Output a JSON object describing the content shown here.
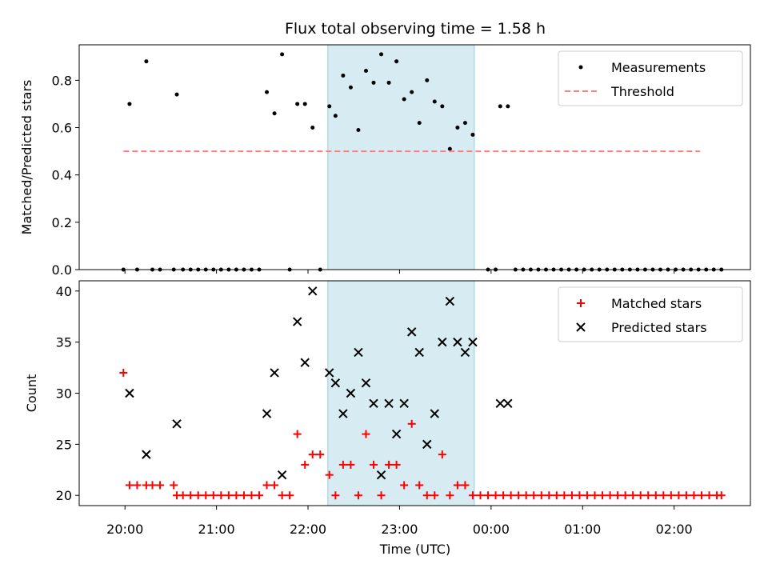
{
  "chart_data": {
    "title": "Flux total observing time = 1.58 h",
    "xlabel": "Time (UTC)",
    "x_ticks": [
      "20:00",
      "21:00",
      "22:00",
      "23:00",
      "00:00",
      "01:00",
      "02:00"
    ],
    "shaded_interval_minutes": [
      1333,
      1429
    ],
    "panels": [
      {
        "type": "scatter",
        "ylabel": "Matched/Predicted stars",
        "ylim": [
          0,
          0.95
        ],
        "y_ticks": [
          "0.0",
          "0.2",
          "0.4",
          "0.6",
          "0.8"
        ],
        "legend_position": "top-right",
        "legend": [
          "Measurements",
          "Threshold"
        ],
        "series": [
          {
            "name": "Measurements",
            "marker": "dot",
            "color": "#000000",
            "points": [
              [
                1199,
                0.0
              ],
              [
                1203,
                0.7
              ],
              [
                1208,
                0.0
              ],
              [
                1214,
                0.88
              ],
              [
                1218,
                0.0
              ],
              [
                1223,
                0.0
              ],
              [
                1232,
                0.0
              ],
              [
                1234,
                0.74
              ],
              [
                1238,
                0.0
              ],
              [
                1243,
                0.0
              ],
              [
                1248,
                0.0
              ],
              [
                1253,
                0.0
              ],
              [
                1258,
                0.0
              ],
              [
                1263,
                0.0
              ],
              [
                1268,
                0.0
              ],
              [
                1273,
                0.0
              ],
              [
                1278,
                0.0
              ],
              [
                1283,
                0.0
              ],
              [
                1288,
                0.0
              ],
              [
                1293,
                0.75
              ],
              [
                1298,
                0.66
              ],
              [
                1303,
                0.91
              ],
              [
                1308,
                0.0
              ],
              [
                1313,
                0.7
              ],
              [
                1318,
                0.7
              ],
              [
                1323,
                0.6
              ],
              [
                1328,
                0.0
              ],
              [
                1334,
                0.69
              ],
              [
                1338,
                0.65
              ],
              [
                1343,
                0.82
              ],
              [
                1348,
                0.77
              ],
              [
                1353,
                0.59
              ],
              [
                1358,
                0.84
              ],
              [
                1363,
                0.79
              ],
              [
                1368,
                0.91
              ],
              [
                1373,
                0.79
              ],
              [
                1378,
                0.88
              ],
              [
                1383,
                0.72
              ],
              [
                1388,
                0.75
              ],
              [
                1393,
                0.62
              ],
              [
                1398,
                0.8
              ],
              [
                1403,
                0.71
              ],
              [
                1408,
                0.69
              ],
              [
                1413,
                0.51
              ],
              [
                1418,
                0.6
              ],
              [
                1423,
                0.62
              ],
              [
                1428,
                0.57
              ],
              [
                1438,
                0.0
              ],
              [
                1443,
                0.0
              ],
              [
                1446,
                0.69
              ],
              [
                1451,
                0.69
              ],
              [
                1456,
                0.0
              ],
              [
                1461,
                0.0
              ],
              [
                1466,
                0.0
              ],
              [
                1471,
                0.0
              ],
              [
                1476,
                0.0
              ],
              [
                1481,
                0.0
              ],
              [
                1486,
                0.0
              ],
              [
                1491,
                0.0
              ],
              [
                1496,
                0.0
              ],
              [
                1501,
                0.0
              ],
              [
                1506,
                0.0
              ],
              [
                1511,
                0.0
              ],
              [
                1516,
                0.0
              ],
              [
                1521,
                0.0
              ],
              [
                1526,
                0.0
              ],
              [
                1531,
                0.0
              ],
              [
                1536,
                0.0
              ],
              [
                1541,
                0.0
              ],
              [
                1546,
                0.0
              ],
              [
                1551,
                0.0
              ],
              [
                1556,
                0.0
              ],
              [
                1561,
                0.0
              ],
              [
                1566,
                0.0
              ],
              [
                1571,
                0.0
              ],
              [
                1576,
                0.0
              ],
              [
                1581,
                0.0
              ],
              [
                1586,
                0.0
              ],
              [
                1591,
                0.0
              ]
            ]
          },
          {
            "name": "Threshold",
            "marker": "dashed-line",
            "color": "#ff7f7f",
            "points": [
              [
                1199,
                0.5
              ],
              [
                1577,
                0.5
              ]
            ]
          }
        ]
      },
      {
        "type": "scatter",
        "ylabel": "Count",
        "ylim": [
          19,
          41
        ],
        "y_ticks": [
          "20",
          "25",
          "30",
          "35",
          "40"
        ],
        "legend_position": "top-right",
        "legend": [
          "Matched stars",
          "Predicted stars"
        ],
        "series": [
          {
            "name": "Matched stars",
            "marker": "plus",
            "color": "#ff0000",
            "points": [
              [
                1199,
                32
              ],
              [
                1203,
                21
              ],
              [
                1208,
                21
              ],
              [
                1214,
                21
              ],
              [
                1218,
                21
              ],
              [
                1223,
                21
              ],
              [
                1232,
                21
              ],
              [
                1234,
                20
              ],
              [
                1238,
                20
              ],
              [
                1243,
                20
              ],
              [
                1248,
                20
              ],
              [
                1253,
                20
              ],
              [
                1258,
                20
              ],
              [
                1263,
                20
              ],
              [
                1268,
                20
              ],
              [
                1273,
                20
              ],
              [
                1278,
                20
              ],
              [
                1283,
                20
              ],
              [
                1288,
                20
              ],
              [
                1293,
                21
              ],
              [
                1298,
                21
              ],
              [
                1303,
                20
              ],
              [
                1308,
                20
              ],
              [
                1313,
                26
              ],
              [
                1318,
                23
              ],
              [
                1323,
                24
              ],
              [
                1328,
                24
              ],
              [
                1334,
                22
              ],
              [
                1338,
                20
              ],
              [
                1343,
                23
              ],
              [
                1348,
                23
              ],
              [
                1353,
                20
              ],
              [
                1358,
                26
              ],
              [
                1363,
                23
              ],
              [
                1368,
                20
              ],
              [
                1373,
                23
              ],
              [
                1378,
                23
              ],
              [
                1383,
                21
              ],
              [
                1388,
                27
              ],
              [
                1393,
                21
              ],
              [
                1398,
                20
              ],
              [
                1403,
                20
              ],
              [
                1408,
                24
              ],
              [
                1413,
                20
              ],
              [
                1418,
                21
              ],
              [
                1423,
                21
              ],
              [
                1428,
                20
              ],
              [
                1433,
                20
              ],
              [
                1438,
                20
              ],
              [
                1443,
                20
              ],
              [
                1448,
                20
              ],
              [
                1453,
                20
              ],
              [
                1458,
                20
              ],
              [
                1463,
                20
              ],
              [
                1468,
                20
              ],
              [
                1473,
                20
              ],
              [
                1478,
                20
              ],
              [
                1483,
                20
              ],
              [
                1488,
                20
              ],
              [
                1493,
                20
              ],
              [
                1498,
                20
              ],
              [
                1503,
                20
              ],
              [
                1508,
                20
              ],
              [
                1513,
                20
              ],
              [
                1518,
                20
              ],
              [
                1523,
                20
              ],
              [
                1528,
                20
              ],
              [
                1533,
                20
              ],
              [
                1538,
                20
              ],
              [
                1543,
                20
              ],
              [
                1548,
                20
              ],
              [
                1553,
                20
              ],
              [
                1558,
                20
              ],
              [
                1563,
                20
              ],
              [
                1568,
                20
              ],
              [
                1573,
                20
              ],
              [
                1578,
                20
              ],
              [
                1583,
                20
              ],
              [
                1588,
                20
              ],
              [
                1591,
                20
              ]
            ]
          },
          {
            "name": "Predicted stars",
            "marker": "x",
            "color": "#000000",
            "points": [
              [
                1203,
                30
              ],
              [
                1214,
                24
              ],
              [
                1234,
                27
              ],
              [
                1293,
                28
              ],
              [
                1298,
                32
              ],
              [
                1303,
                22
              ],
              [
                1313,
                37
              ],
              [
                1318,
                33
              ],
              [
                1323,
                40
              ],
              [
                1334,
                32
              ],
              [
                1338,
                31
              ],
              [
                1343,
                28
              ],
              [
                1348,
                30
              ],
              [
                1353,
                34
              ],
              [
                1358,
                31
              ],
              [
                1363,
                29
              ],
              [
                1368,
                22
              ],
              [
                1373,
                29
              ],
              [
                1378,
                26
              ],
              [
                1383,
                29
              ],
              [
                1388,
                36
              ],
              [
                1393,
                34
              ],
              [
                1398,
                25
              ],
              [
                1403,
                28
              ],
              [
                1408,
                35
              ],
              [
                1413,
                39
              ],
              [
                1418,
                35
              ],
              [
                1423,
                34
              ],
              [
                1428,
                35
              ],
              [
                1446,
                29
              ],
              [
                1451,
                29
              ]
            ]
          }
        ]
      }
    ]
  }
}
